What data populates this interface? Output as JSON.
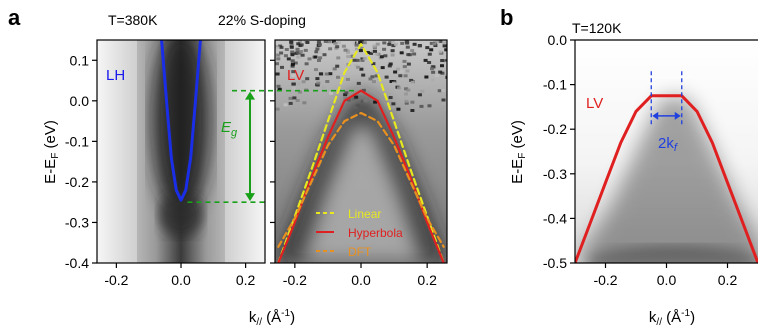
{
  "figure": {
    "panel_a": {
      "letter": "a",
      "temperature": "T=380K",
      "doping": "22% S-doping",
      "ylabel": "E-E",
      "ylabel_sub": "F",
      "ylabel_unit": " (eV)",
      "xlabel": "k",
      "xlabel_sub": "//",
      "xlabel_unit": " (Å",
      "xlabel_sup": "-1",
      "xlabel_close": ")",
      "left_label": "LH",
      "right_label": "LV",
      "gap_label": "E",
      "gap_label_sub": "g",
      "legend": [
        {
          "label": "Linear",
          "color": "#e8e820",
          "dash": true
        },
        {
          "label": "Hyperbola",
          "color": "#e02020",
          "dash": false
        },
        {
          "label": "DFT",
          "color": "#e89020",
          "dash": true
        }
      ]
    },
    "panel_b": {
      "letter": "b",
      "temperature": "T=120K",
      "ylabel": "E-E",
      "ylabel_sub": "F",
      "ylabel_unit": " (eV)",
      "xlabel": "k",
      "xlabel_sub": "//",
      "xlabel_unit": " (Å",
      "xlabel_sup": "-1",
      "xlabel_close": ")",
      "label": "LV",
      "kf_label": "2k",
      "kf_sub": "f"
    }
  },
  "colors": {
    "lh_label": "#1a1aee",
    "lv_label": "#e02020",
    "gap": "#18a018",
    "band_blue": "#1a2ee8",
    "band_red": "#e02020",
    "kf_arrow": "#2040e0"
  },
  "chart_data": [
    {
      "type": "line",
      "panel": "a (left, LH)",
      "xlim": [
        -0.26,
        0.26
      ],
      "ylim": [
        -0.4,
        0.15
      ],
      "xticks": [
        -0.2,
        0.0,
        0.2
      ],
      "xtick_labels": [
        "-0.2",
        "0.0",
        "0.2"
      ],
      "yticks": [
        -0.4,
        -0.3,
        -0.2,
        -0.1,
        0.0,
        0.1
      ],
      "ytick_labels": [
        "-0.4",
        "-0.3",
        "-0.2",
        "-0.1",
        "0.0",
        "0.1"
      ],
      "series": [
        {
          "name": "LH band",
          "color": "#1a2ee8",
          "x": [
            -0.06,
            -0.045,
            -0.03,
            -0.015,
            0.0,
            0.015,
            0.03,
            0.045,
            0.06
          ],
          "y": [
            0.15,
            0.0,
            -0.14,
            -0.22,
            -0.245,
            -0.22,
            -0.14,
            0.0,
            0.15
          ]
        }
      ]
    },
    {
      "type": "line",
      "panel": "a (right, LV)",
      "xlim": [
        -0.26,
        0.26
      ],
      "ylim": [
        -0.4,
        0.15
      ],
      "xticks": [
        -0.2,
        0.0,
        0.2
      ],
      "xtick_labels": [
        "-0.2",
        "0.0",
        "0.2"
      ],
      "series": [
        {
          "name": "Linear",
          "color": "#e8e820",
          "x": [
            -0.25,
            -0.15,
            -0.05,
            0.0,
            0.05,
            0.15,
            0.25
          ],
          "y": [
            -0.4,
            -0.17,
            0.07,
            0.14,
            0.07,
            -0.17,
            -0.4
          ]
        },
        {
          "name": "Hyperbola",
          "color": "#e02020",
          "x": [
            -0.25,
            -0.2,
            -0.15,
            -0.1,
            -0.05,
            0.0,
            0.05,
            0.1,
            0.15,
            0.2,
            0.25
          ],
          "y": [
            -0.4,
            -0.3,
            -0.19,
            -0.09,
            0.0,
            0.025,
            0.0,
            -0.09,
            -0.19,
            -0.3,
            -0.4
          ]
        },
        {
          "name": "DFT",
          "color": "#e89020",
          "x": [
            -0.25,
            -0.2,
            -0.15,
            -0.1,
            -0.05,
            0.0,
            0.05,
            0.1,
            0.15,
            0.2,
            0.25
          ],
          "y": [
            -0.36,
            -0.29,
            -0.2,
            -0.11,
            -0.05,
            -0.03,
            -0.05,
            -0.11,
            -0.2,
            -0.29,
            -0.36
          ]
        }
      ],
      "annotations": [
        {
          "type": "gap",
          "label": "Eg",
          "from": -0.25,
          "to": 0.025
        }
      ]
    },
    {
      "type": "line",
      "panel": "b (LV)",
      "xlim": [
        -0.3,
        0.3
      ],
      "ylim": [
        -0.5,
        0.0
      ],
      "xticks": [
        -0.2,
        0.0,
        0.2
      ],
      "xtick_labels": [
        "-0.2",
        "0.0",
        "0.2"
      ],
      "yticks": [
        -0.5,
        -0.4,
        -0.3,
        -0.2,
        -0.1,
        0.0
      ],
      "ytick_labels": [
        "-0.5",
        "-0.4",
        "-0.3",
        "-0.2",
        "-0.1",
        "0.0"
      ],
      "series": [
        {
          "name": "LV band",
          "color": "#e02020",
          "x": [
            -0.3,
            -0.25,
            -0.2,
            -0.15,
            -0.1,
            -0.05,
            0.0,
            0.05,
            0.1,
            0.15,
            0.2,
            0.25,
            0.3
          ],
          "y": [
            -0.5,
            -0.41,
            -0.32,
            -0.23,
            -0.16,
            -0.125,
            -0.125,
            -0.125,
            -0.16,
            -0.23,
            -0.32,
            -0.41,
            -0.5
          ]
        }
      ],
      "annotations": [
        {
          "type": "kf",
          "label": "2kf",
          "from": -0.05,
          "to": 0.05,
          "energy": -0.17
        }
      ]
    }
  ]
}
